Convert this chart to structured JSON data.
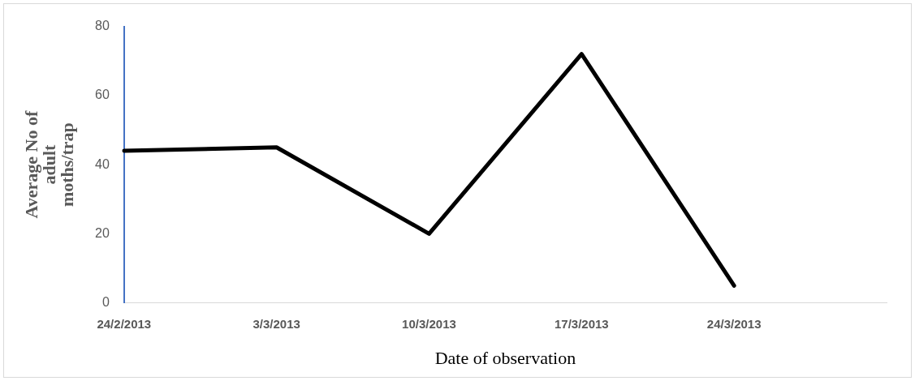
{
  "chart_data": {
    "type": "line",
    "xlabel": "Date of observation",
    "ylabel": "Average No of adult moths/trap",
    "categories": [
      "24/2/2013",
      "3/3/2013",
      "10/3/2013",
      "17/3/2013",
      "24/3/2013",
      null
    ],
    "series": [
      {
        "color": "#000000",
        "values": [
          44,
          45,
          20,
          72,
          5,
          null
        ]
      }
    ],
    "ylim": [
      0,
      80
    ],
    "yticks": [
      0,
      20,
      40,
      60,
      80
    ],
    "grid": false,
    "legend": false,
    "marker": "none",
    "line_style": "solid"
  }
}
